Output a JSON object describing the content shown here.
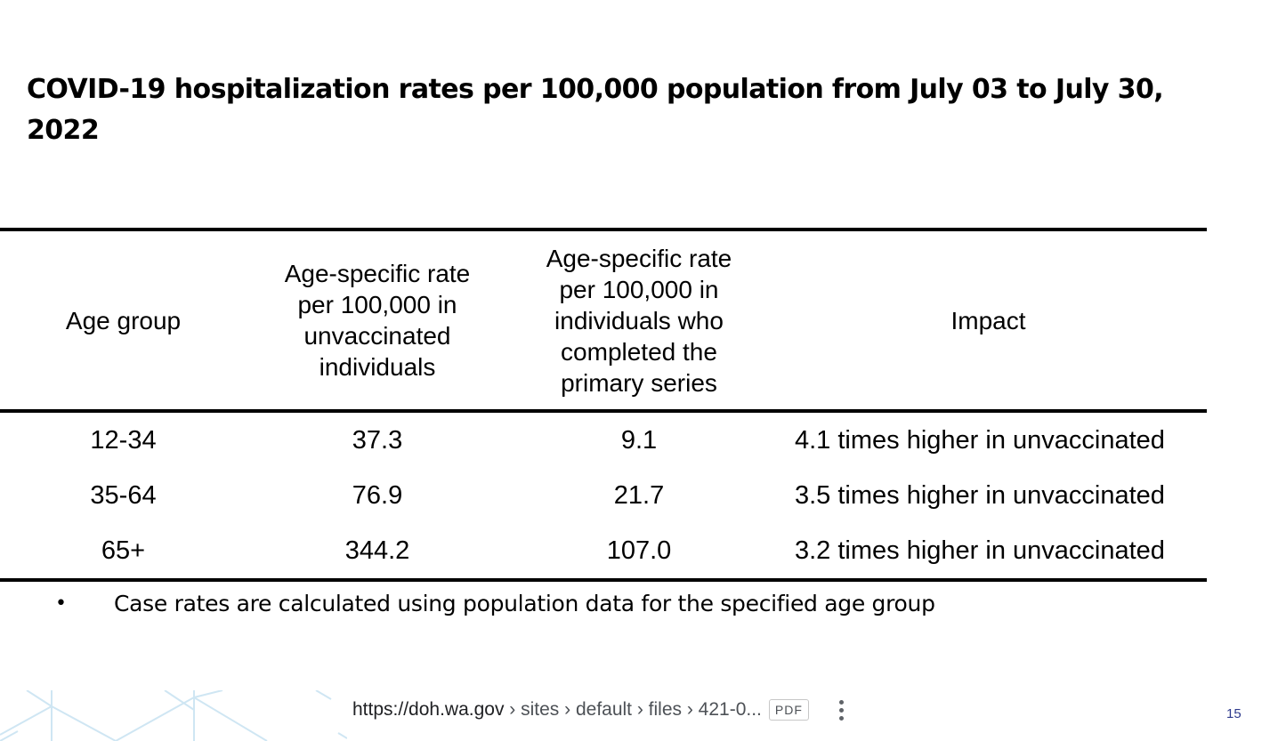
{
  "slide": {
    "title": "COVID-19 hospitalization rates per 100,000 population from July 03 to July 30, 2022",
    "page_number": "15"
  },
  "table": {
    "headers": [
      "Age group",
      "Age-specific rate per 100,000 in unvaccinated individuals",
      "Age-specific rate per 100,000 in individuals who completed the primary series",
      "Impact"
    ],
    "rows": [
      {
        "age_group": "12-34",
        "unvaccinated_rate": "37.3",
        "primary_series_rate": "9.1",
        "impact": "4.1 times higher in unvaccinated"
      },
      {
        "age_group": "35-64",
        "unvaccinated_rate": "76.9",
        "primary_series_rate": "21.7",
        "impact": "3.5 times higher in unvaccinated"
      },
      {
        "age_group": "65+",
        "unvaccinated_rate": "344.2",
        "primary_series_rate": "107.0",
        "impact": "3.2 times higher in unvaccinated"
      }
    ]
  },
  "footnote": {
    "bullet": "•",
    "text": "Case rates are calculated using population data for the specified age group"
  },
  "source": {
    "domain": "https://doh.wa.gov",
    "path": " › sites › default › files › 421-0...",
    "badge": "PDF"
  },
  "colors": {
    "decoration": "#cfe6f3",
    "page_number": "#2e3a8c"
  }
}
